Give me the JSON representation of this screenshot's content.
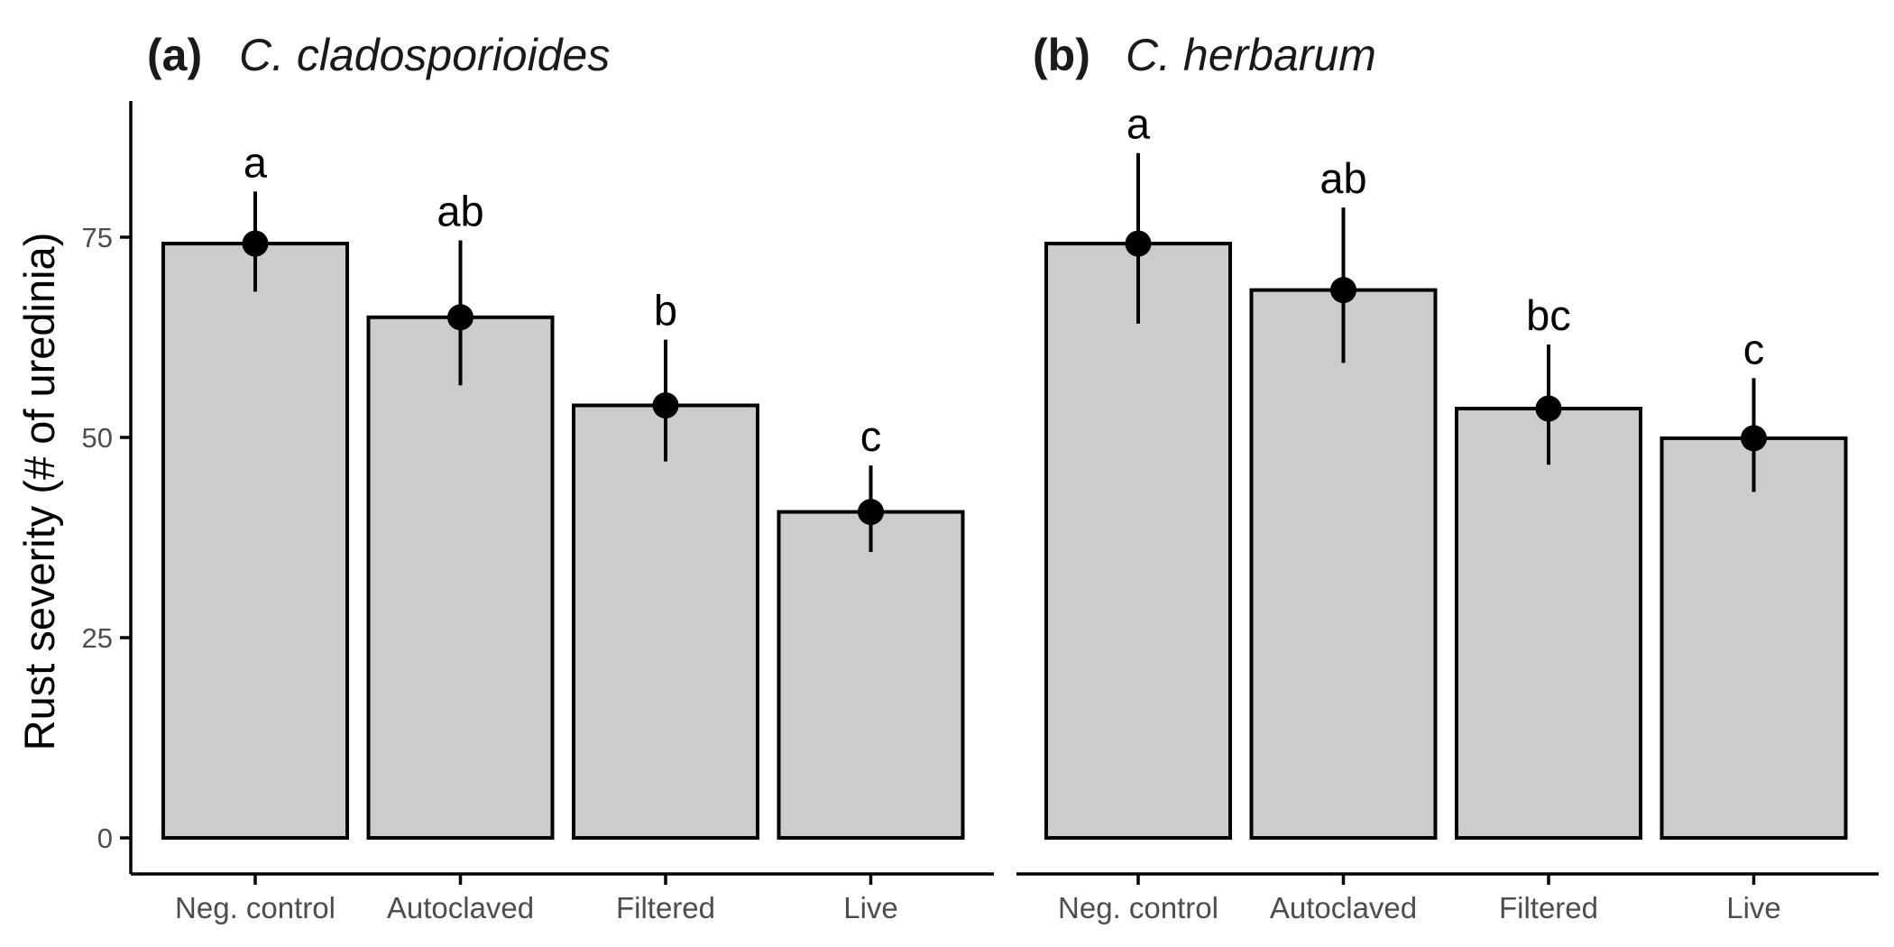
{
  "colors": {
    "bar_fill": "#cccccc",
    "bar_stroke": "#000000",
    "point": "#000000",
    "axis": "#000000",
    "tick_text": "#4d4d4d"
  },
  "chart_data": [
    {
      "type": "bar",
      "panel_tag": "(a)",
      "title": "C. cladosporioides",
      "ylabel": "Rust severity (# of uredinia)",
      "xlabel": "",
      "categories": [
        "Neg. control",
        "Autoclaved",
        "Filtered",
        "Live"
      ],
      "values": [
        74.2,
        65.0,
        54.0,
        40.7
      ],
      "error_low": [
        68.2,
        56.5,
        47.0,
        35.7
      ],
      "error_high": [
        80.7,
        74.6,
        62.2,
        46.5
      ],
      "significance_letters": [
        "a",
        "ab",
        "b",
        "c"
      ],
      "yticks": [
        0,
        25,
        50,
        75
      ],
      "ylim": [
        -4.5,
        92
      ],
      "grid": false
    },
    {
      "type": "bar",
      "panel_tag": "(b)",
      "title": "C. herbarum",
      "ylabel": "",
      "xlabel": "",
      "categories": [
        "Neg. control",
        "Autoclaved",
        "Filtered",
        "Live"
      ],
      "values": [
        74.2,
        68.4,
        53.6,
        49.9
      ],
      "error_low": [
        64.2,
        59.3,
        46.6,
        43.2
      ],
      "error_high": [
        85.5,
        78.7,
        61.6,
        57.4
      ],
      "significance_letters": [
        "a",
        "ab",
        "bc",
        "c"
      ],
      "yticks": [
        0,
        25,
        50,
        75
      ],
      "ylim": [
        -4.5,
        92
      ],
      "grid": false
    }
  ]
}
